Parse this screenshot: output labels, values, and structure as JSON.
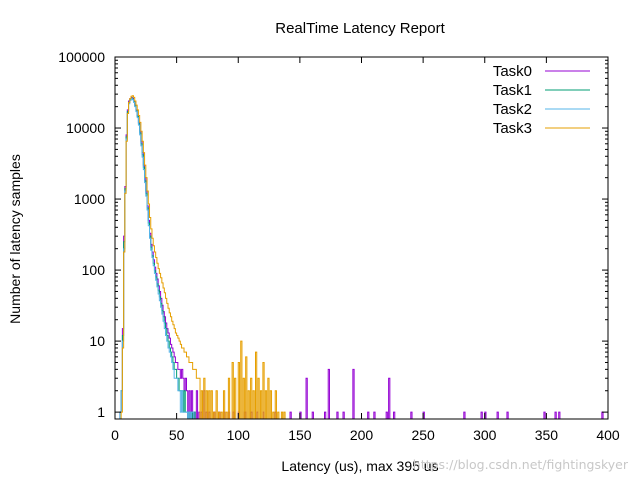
{
  "chart_data": {
    "type": "line",
    "title": "RealTime Latency Report",
    "xlabel": "Latency (us), max 395 us",
    "ylabel": "Number of latency samples",
    "xlim": [
      0,
      400
    ],
    "ylim": [
      0.8,
      100000
    ],
    "y_scale": "log",
    "x_ticks": [
      0,
      50,
      100,
      150,
      200,
      250,
      300,
      350,
      400
    ],
    "y_ticks": [
      1,
      10,
      100,
      1000,
      10000,
      100000
    ],
    "y_tick_labels": [
      "1",
      "10",
      "100",
      "1000",
      "10000",
      "100000"
    ],
    "grid": false,
    "legend_position": "top-right",
    "series": [
      {
        "name": "Task0",
        "color": "#9400d3",
        "points": [
          [
            4,
            1
          ],
          [
            5,
            2
          ],
          [
            6,
            15
          ],
          [
            7,
            300
          ],
          [
            8,
            1500
          ],
          [
            9,
            8000
          ],
          [
            10,
            18000
          ],
          [
            11,
            24000
          ],
          [
            12,
            26000
          ],
          [
            13,
            27000
          ],
          [
            14,
            26000
          ],
          [
            15,
            24000
          ],
          [
            16,
            21000
          ],
          [
            17,
            18000
          ],
          [
            18,
            15000
          ],
          [
            19,
            12000
          ],
          [
            20,
            9000
          ],
          [
            21,
            6500
          ],
          [
            22,
            4500
          ],
          [
            23,
            3000
          ],
          [
            24,
            2000
          ],
          [
            25,
            1300
          ],
          [
            26,
            800
          ],
          [
            27,
            500
          ],
          [
            28,
            330
          ],
          [
            29,
            230
          ],
          [
            30,
            180
          ],
          [
            31,
            140
          ],
          [
            32,
            110
          ],
          [
            33,
            90
          ],
          [
            34,
            75
          ],
          [
            35,
            60
          ],
          [
            36,
            50
          ],
          [
            37,
            40
          ],
          [
            38,
            32
          ],
          [
            39,
            26
          ],
          [
            40,
            22
          ],
          [
            41,
            18
          ],
          [
            42,
            15
          ],
          [
            43,
            13
          ],
          [
            44,
            11
          ],
          [
            45,
            9
          ],
          [
            46,
            8
          ],
          [
            47,
            7
          ],
          [
            48,
            6
          ],
          [
            49,
            5
          ],
          [
            50,
            5
          ],
          [
            51,
            4
          ],
          [
            52,
            4
          ],
          [
            53,
            3
          ],
          [
            54,
            4
          ],
          [
            55,
            3
          ],
          [
            56,
            2
          ],
          [
            57,
            3
          ],
          [
            58,
            2
          ],
          [
            60,
            2
          ],
          [
            62,
            2
          ],
          [
            64,
            1
          ],
          [
            66,
            2
          ],
          [
            68,
            1
          ],
          [
            70,
            1
          ],
          [
            72,
            2
          ],
          [
            74,
            1
          ],
          [
            76,
            1
          ],
          [
            80,
            1
          ],
          [
            84,
            1
          ],
          [
            88,
            1
          ],
          [
            92,
            1
          ],
          [
            96,
            1
          ],
          [
            100,
            1
          ],
          [
            105,
            1
          ],
          [
            110,
            1
          ],
          [
            115,
            1
          ],
          [
            120,
            1
          ],
          [
            130,
            1
          ],
          [
            142,
            1
          ],
          [
            150,
            1
          ],
          [
            155,
            3
          ],
          [
            160,
            1
          ],
          [
            170,
            1
          ],
          [
            173,
            4
          ],
          [
            180,
            1
          ],
          [
            185,
            1
          ],
          [
            193,
            4
          ],
          [
            205,
            1
          ],
          [
            210,
            1
          ],
          [
            220,
            1
          ],
          [
            222,
            3
          ],
          [
            226,
            1
          ],
          [
            240,
            1
          ],
          [
            250,
            1
          ],
          [
            283,
            1
          ],
          [
            297,
            1
          ],
          [
            300,
            1
          ],
          [
            310,
            1
          ],
          [
            318,
            1
          ],
          [
            348,
            1
          ],
          [
            357,
            1
          ],
          [
            360,
            1
          ],
          [
            395,
            1
          ]
        ]
      },
      {
        "name": "Task1",
        "color": "#009e73",
        "points": [
          [
            4,
            1
          ],
          [
            5,
            2
          ],
          [
            6,
            12
          ],
          [
            7,
            250
          ],
          [
            8,
            1400
          ],
          [
            9,
            7500
          ],
          [
            10,
            17000
          ],
          [
            11,
            23000
          ],
          [
            12,
            25000
          ],
          [
            13,
            26500
          ],
          [
            14,
            25500
          ],
          [
            15,
            23500
          ],
          [
            16,
            20500
          ],
          [
            17,
            17500
          ],
          [
            18,
            14500
          ],
          [
            19,
            11500
          ],
          [
            20,
            8500
          ],
          [
            21,
            6000
          ],
          [
            22,
            4200
          ],
          [
            23,
            2800
          ],
          [
            24,
            1800
          ],
          [
            25,
            1200
          ],
          [
            26,
            750
          ],
          [
            27,
            460
          ],
          [
            28,
            300
          ],
          [
            29,
            210
          ],
          [
            30,
            160
          ],
          [
            31,
            125
          ],
          [
            32,
            98
          ],
          [
            33,
            80
          ],
          [
            34,
            64
          ],
          [
            35,
            52
          ],
          [
            36,
            42
          ],
          [
            37,
            34
          ],
          [
            38,
            27
          ],
          [
            39,
            22
          ],
          [
            40,
            18
          ],
          [
            41,
            15
          ],
          [
            42,
            12
          ],
          [
            43,
            10
          ],
          [
            44,
            8
          ],
          [
            45,
            7
          ],
          [
            46,
            6
          ],
          [
            47,
            5
          ],
          [
            48,
            4
          ],
          [
            49,
            4
          ],
          [
            50,
            3
          ],
          [
            51,
            3
          ],
          [
            52,
            2
          ],
          [
            53,
            2
          ],
          [
            54,
            2
          ],
          [
            55,
            1
          ],
          [
            56,
            2
          ],
          [
            57,
            1
          ],
          [
            58,
            1
          ],
          [
            60,
            1
          ],
          [
            62,
            1
          ],
          [
            64,
            1
          ]
        ]
      },
      {
        "name": "Task2",
        "color": "#56b4e9",
        "points": [
          [
            4,
            1
          ],
          [
            5,
            2
          ],
          [
            6,
            10
          ],
          [
            7,
            200
          ],
          [
            8,
            1300
          ],
          [
            9,
            7000
          ],
          [
            10,
            16000
          ],
          [
            11,
            22000
          ],
          [
            12,
            24500
          ],
          [
            13,
            26000
          ],
          [
            14,
            25000
          ],
          [
            15,
            23000
          ],
          [
            16,
            20000
          ],
          [
            17,
            17000
          ],
          [
            18,
            14000
          ],
          [
            19,
            11000
          ],
          [
            20,
            8000
          ],
          [
            21,
            5600
          ],
          [
            22,
            3900
          ],
          [
            23,
            2600
          ],
          [
            24,
            1700
          ],
          [
            25,
            1100
          ],
          [
            26,
            700
          ],
          [
            27,
            420
          ],
          [
            28,
            280
          ],
          [
            29,
            190
          ],
          [
            30,
            150
          ],
          [
            31,
            115
          ],
          [
            32,
            90
          ],
          [
            33,
            72
          ],
          [
            34,
            58
          ],
          [
            35,
            46
          ],
          [
            36,
            37
          ],
          [
            37,
            30
          ],
          [
            38,
            24
          ],
          [
            39,
            19
          ],
          [
            40,
            15
          ],
          [
            41,
            12
          ],
          [
            42,
            10
          ],
          [
            43,
            8
          ],
          [
            44,
            7
          ],
          [
            45,
            6
          ],
          [
            46,
            5
          ],
          [
            47,
            4
          ],
          [
            48,
            3
          ],
          [
            49,
            3
          ],
          [
            50,
            3
          ],
          [
            51,
            2
          ],
          [
            52,
            2
          ],
          [
            53,
            1
          ],
          [
            54,
            2
          ],
          [
            55,
            1
          ],
          [
            56,
            1
          ],
          [
            57,
            1
          ],
          [
            58,
            1
          ],
          [
            60,
            1
          ],
          [
            62,
            1
          ],
          [
            63,
            1
          ]
        ]
      },
      {
        "name": "Task3",
        "color": "#e69f00",
        "points": [
          [
            5,
            1
          ],
          [
            6,
            8
          ],
          [
            7,
            180
          ],
          [
            8,
            1200
          ],
          [
            9,
            6500
          ],
          [
            10,
            16000
          ],
          [
            11,
            23000
          ],
          [
            12,
            26000
          ],
          [
            13,
            28000
          ],
          [
            14,
            28500
          ],
          [
            15,
            27000
          ],
          [
            16,
            24000
          ],
          [
            17,
            21000
          ],
          [
            18,
            18000
          ],
          [
            19,
            15000
          ],
          [
            20,
            12000
          ],
          [
            21,
            9000
          ],
          [
            22,
            6500
          ],
          [
            23,
            4500
          ],
          [
            24,
            3000
          ],
          [
            25,
            2000
          ],
          [
            26,
            1300
          ],
          [
            27,
            850
          ],
          [
            28,
            550
          ],
          [
            29,
            380
          ],
          [
            30,
            280
          ],
          [
            31,
            220
          ],
          [
            32,
            180
          ],
          [
            33,
            150
          ],
          [
            34,
            125
          ],
          [
            35,
            105
          ],
          [
            36,
            90
          ],
          [
            37,
            78
          ],
          [
            38,
            66
          ],
          [
            39,
            56
          ],
          [
            40,
            48
          ],
          [
            41,
            40
          ],
          [
            42,
            34
          ],
          [
            43,
            29
          ],
          [
            44,
            25
          ],
          [
            45,
            22
          ],
          [
            46,
            19
          ],
          [
            47,
            17
          ],
          [
            48,
            15
          ],
          [
            49,
            13
          ],
          [
            50,
            12
          ],
          [
            51,
            11
          ],
          [
            52,
            10
          ],
          [
            53,
            9
          ],
          [
            54,
            8
          ],
          [
            55,
            8
          ],
          [
            56,
            7
          ],
          [
            57,
            7
          ],
          [
            58,
            6
          ],
          [
            59,
            6
          ],
          [
            60,
            5
          ],
          [
            61,
            5
          ],
          [
            62,
            5
          ],
          [
            63,
            4
          ],
          [
            64,
            4
          ],
          [
            65,
            4
          ],
          [
            66,
            3
          ],
          [
            67,
            3
          ],
          [
            68,
            3
          ],
          [
            70,
            2
          ],
          [
            72,
            3
          ],
          [
            74,
            2
          ],
          [
            76,
            2
          ],
          [
            78,
            2
          ],
          [
            80,
            1
          ],
          [
            82,
            2
          ],
          [
            84,
            1
          ],
          [
            86,
            1
          ],
          [
            88,
            2
          ],
          [
            90,
            1
          ],
          [
            92,
            3
          ],
          [
            95,
            5
          ],
          [
            97,
            3
          ],
          [
            100,
            5
          ],
          [
            102,
            10
          ],
          [
            104,
            3
          ],
          [
            106,
            6
          ],
          [
            108,
            2
          ],
          [
            110,
            3
          ],
          [
            112,
            2
          ],
          [
            114,
            7
          ],
          [
            116,
            3
          ],
          [
            118,
            2
          ],
          [
            120,
            5
          ],
          [
            122,
            2
          ],
          [
            124,
            3
          ],
          [
            126,
            2
          ],
          [
            128,
            1
          ],
          [
            130,
            2
          ],
          [
            132,
            1
          ],
          [
            135,
            1
          ],
          [
            137,
            1
          ]
        ]
      }
    ]
  },
  "watermark": "https://blog.csdn.net/fightingskyer"
}
